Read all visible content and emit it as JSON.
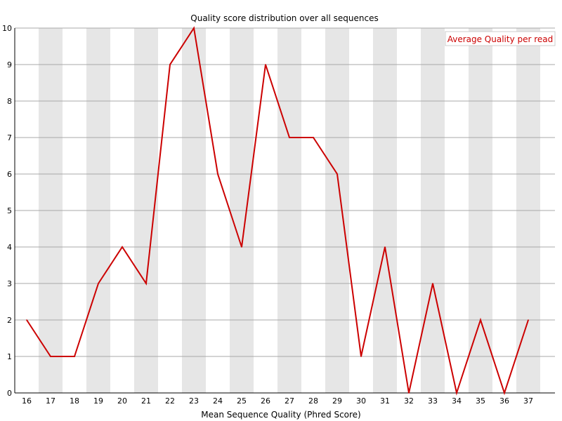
{
  "chart_data": {
    "type": "line",
    "title": "Quality score distribution over all sequences",
    "xlabel": "Mean Sequence Quality (Phred Score)",
    "ylabel": "",
    "categories": [
      "16",
      "17",
      "18",
      "19",
      "20",
      "21",
      "22",
      "23",
      "24",
      "25",
      "26",
      "27",
      "28",
      "29",
      "30",
      "31",
      "32",
      "33",
      "34",
      "35",
      "36",
      "37"
    ],
    "ylim": [
      0,
      10
    ],
    "yticks": [
      0,
      1,
      2,
      3,
      4,
      5,
      6,
      7,
      8,
      9,
      10
    ],
    "grid": true,
    "legend_position": "top-right",
    "series": [
      {
        "name": "Average Quality per read",
        "color": "#cc0000",
        "values": [
          2,
          1,
          1,
          3,
          4,
          3,
          9,
          10,
          6,
          4,
          9,
          7,
          7,
          6,
          1,
          4,
          0,
          3,
          0,
          2,
          0,
          2
        ]
      }
    ]
  }
}
